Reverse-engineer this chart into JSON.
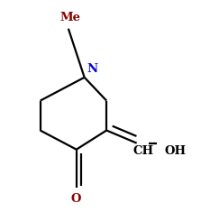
{
  "background_color": "#ffffff",
  "bond_color": "#000000",
  "blue_color": "#0000dd",
  "dark_red": "#8B0000",
  "figsize": [
    2.23,
    2.35
  ],
  "dpi": 100,
  "Me_label": "Me",
  "N_label": "N",
  "CH_label": "CH",
  "OH_label": "OH",
  "O_label": "O",
  "lw": 1.6
}
